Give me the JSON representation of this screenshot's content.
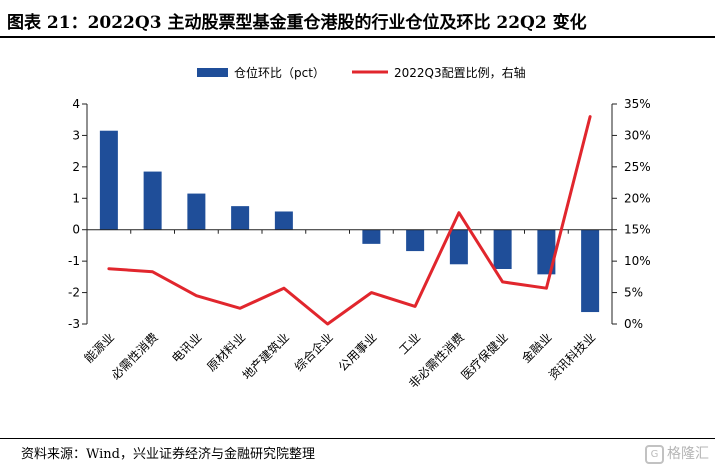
{
  "title": "图表 21：2022Q3 主动股票型基金重仓港股的行业仓位及环比 22Q2 变化",
  "source": "资料来源：Wind，兴业证券经济与金融研究院整理",
  "watermark": "格隆汇",
  "colors": {
    "bar": "#1F4E99",
    "line": "#E1262D",
    "axis": "#222222"
  },
  "chart_data": {
    "type": "bar",
    "categories": [
      "能源业",
      "必需性消费",
      "电讯业",
      "原材料业",
      "地产建筑业",
      "综合企业",
      "公用事业",
      "工业",
      "非必需性消费",
      "医疗保健业",
      "金融业",
      "资讯科技业"
    ],
    "series": [
      {
        "name": "仓位环比（pct）",
        "type": "bar",
        "axis": "left",
        "values": [
          3.15,
          1.85,
          1.15,
          0.75,
          0.58,
          0.0,
          -0.45,
          -0.68,
          -1.1,
          -1.25,
          -1.42,
          -2.62
        ]
      },
      {
        "name": "2022Q3配置比例，右轴",
        "type": "line",
        "axis": "right",
        "values": [
          8.8,
          8.3,
          4.5,
          2.5,
          5.7,
          0.0,
          5.0,
          2.8,
          17.7,
          6.7,
          5.7,
          33.0
        ]
      }
    ],
    "left_axis": {
      "min": -3,
      "max": 4,
      "ticks": [
        "-3",
        "-2",
        "-1",
        "0",
        "1",
        "2",
        "3",
        "4"
      ]
    },
    "right_axis": {
      "min": 0,
      "max": 35,
      "ticks": [
        "0%",
        "5%",
        "10%",
        "15%",
        "20%",
        "25%",
        "30%",
        "35%"
      ]
    },
    "legend_position": "top",
    "grid": false
  }
}
